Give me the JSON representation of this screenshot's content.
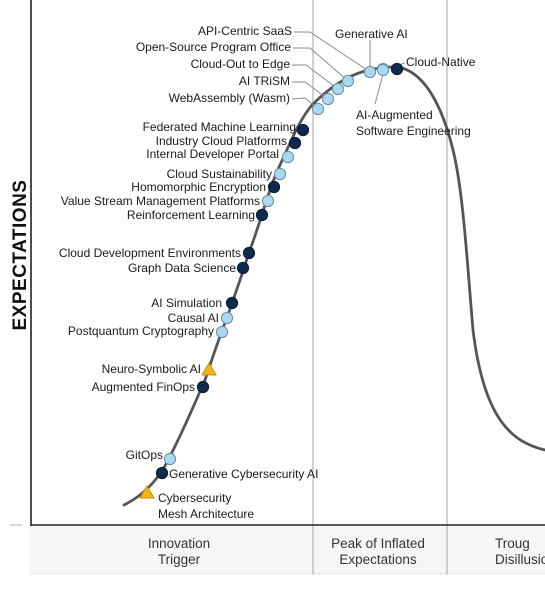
{
  "y_axis_label": "EXPECTATIONS",
  "phases": [
    {
      "lines": [
        "Innovation",
        "Trigger"
      ]
    },
    {
      "lines": [
        "Peak of Inflated",
        "Expectations"
      ]
    },
    {
      "lines": [
        "Troug",
        "Disillusio"
      ]
    }
  ],
  "legend_colors": {
    "less_than_2_years": "#a9d9f0",
    "two_to_five_years": "#0e2a4f",
    "more_than_ten_years": "#f2b616",
    "curve": "#555555"
  },
  "technologies": [
    {
      "label": "Cybersecurity Mesh Architecture",
      "lines": [
        "Cybersecurity",
        "Mesh Architecture"
      ],
      "category": "more_than_ten_years"
    },
    {
      "label": "Generative Cybersecurity AI",
      "lines": [
        "Generative Cybersecurity AI"
      ],
      "category": "two_to_five_years"
    },
    {
      "label": "GitOps",
      "lines": [
        "GitOps"
      ],
      "category": "less_than_2_years"
    },
    {
      "label": "Augmented FinOps",
      "lines": [
        "Augmented FinOps"
      ],
      "category": "two_to_five_years"
    },
    {
      "label": "Neuro-Symbolic AI",
      "lines": [
        "Neuro-Symbolic AI"
      ],
      "category": "more_than_ten_years"
    },
    {
      "label": "Postquantum Cryptography",
      "lines": [
        "Postquantum Cryptography"
      ],
      "category": "less_than_2_years"
    },
    {
      "label": "Causal AI",
      "lines": [
        "Causal AI"
      ],
      "category": "less_than_2_years"
    },
    {
      "label": "AI Simulation",
      "lines": [
        "AI Simulation"
      ],
      "category": "two_to_five_years"
    },
    {
      "label": "Graph Data Science",
      "lines": [
        "Graph Data Science"
      ],
      "category": "two_to_five_years"
    },
    {
      "label": "Cloud Development Environments",
      "lines": [
        "Cloud Development Environments"
      ],
      "category": "two_to_five_years"
    },
    {
      "label": "Reinforcement Learning",
      "lines": [
        "Reinforcement Learning"
      ],
      "category": "two_to_five_years"
    },
    {
      "label": "Value Stream Management Platforms",
      "lines": [
        "Value Stream Management Platforms"
      ],
      "category": "less_than_2_years"
    },
    {
      "label": "Homomorphic Encryption",
      "lines": [
        "Homomorphic Encryption"
      ],
      "category": "two_to_five_years"
    },
    {
      "label": "Cloud Sustainability",
      "lines": [
        "Cloud Sustainability"
      ],
      "category": "less_than_2_years"
    },
    {
      "label": "Internal Developer Portal",
      "lines": [
        "Internal Developer Portal"
      ],
      "category": "less_than_2_years"
    },
    {
      "label": "Industry Cloud Platforms",
      "lines": [
        "Industry Cloud Platforms"
      ],
      "category": "two_to_five_years"
    },
    {
      "label": "Federated Machine Learning",
      "lines": [
        "Federated Machine Learning"
      ],
      "category": "two_to_five_years"
    },
    {
      "label": "WebAssembly (Wasm)",
      "lines": [
        "WebAssembly (Wasm)"
      ],
      "category": "less_than_2_years"
    },
    {
      "label": "AI TRiSM",
      "lines": [
        "AI TRiSM"
      ],
      "category": "less_than_2_years"
    },
    {
      "label": "Cloud-Out to Edge",
      "lines": [
        "Cloud-Out to Edge"
      ],
      "category": "less_than_2_years"
    },
    {
      "label": "Open-Source Program Office",
      "lines": [
        "Open-Source Program Office"
      ],
      "category": "less_than_2_years"
    },
    {
      "label": "API-Centric SaaS",
      "lines": [
        "API-Centric SaaS"
      ],
      "category": "less_than_2_years"
    },
    {
      "label": "Generative AI",
      "lines": [
        "Generative AI"
      ],
      "category": "less_than_2_years"
    },
    {
      "label": "AI-Augmented Software Engineering",
      "lines": [
        "AI-Augmented",
        "Software Engineering"
      ],
      "category": "less_than_2_years"
    },
    {
      "label": "Cloud-Native",
      "lines": [
        "Cloud-Native"
      ],
      "category": "two_to_five_years"
    }
  ]
}
